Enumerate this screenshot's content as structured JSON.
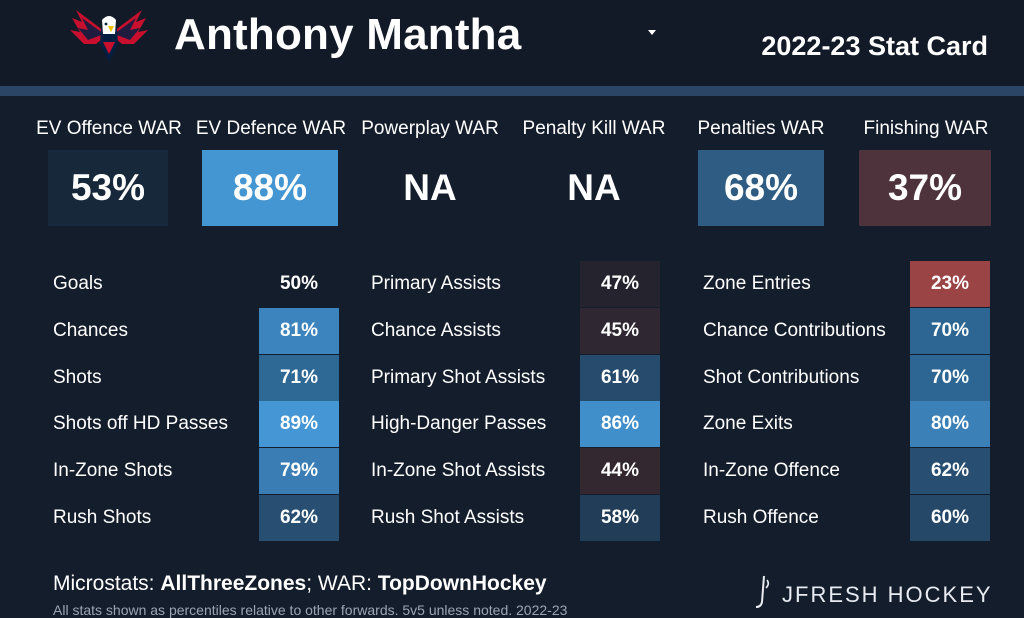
{
  "header": {
    "player_name": "Anthony Mantha",
    "card_title": "2022-23 Stat Card"
  },
  "war": [
    {
      "label": "EV Offence WAR",
      "value": "53%",
      "color": "#18283b"
    },
    {
      "label": "EV Defence WAR",
      "value": "88%",
      "color": "#4396d2"
    },
    {
      "label": "Powerplay WAR",
      "value": "NA",
      "color": "#141d2b"
    },
    {
      "label": "Penalty Kill WAR",
      "value": "NA",
      "color": "#141d2b"
    },
    {
      "label": "Penalties WAR",
      "value": "68%",
      "color": "#2e5c82"
    },
    {
      "label": "Finishing WAR",
      "value": "37%",
      "color": "#4e333c"
    }
  ],
  "stats": {
    "col1": [
      {
        "label": "Goals",
        "value": "50%",
        "color": "#141d2b"
      },
      {
        "label": "Chances",
        "value": "81%",
        "color": "#3b84bd"
      },
      {
        "label": "Shots",
        "value": "71%",
        "color": "#2e6895"
      },
      {
        "label": "Shots off HD Passes",
        "value": "89%",
        "color": "#4497d4"
      },
      {
        "label": "In-Zone Shots",
        "value": "79%",
        "color": "#3a7db4"
      },
      {
        "label": "Rush Shots",
        "value": "62%",
        "color": "#284f72"
      }
    ],
    "col2": [
      {
        "label": "Primary Assists",
        "value": "47%",
        "color": "#25232e"
      },
      {
        "label": "Chance Assists",
        "value": "45%",
        "color": "#2f2731"
      },
      {
        "label": "Primary Shot Assists",
        "value": "61%",
        "color": "#264b6c"
      },
      {
        "label": "High-Danger Passes",
        "value": "86%",
        "color": "#418fca"
      },
      {
        "label": "In-Zone Shot Assists",
        "value": "44%",
        "color": "#332830"
      },
      {
        "label": "Rush Shot Assists",
        "value": "58%",
        "color": "#213d58"
      }
    ],
    "col3": [
      {
        "label": "Zone Entries",
        "value": "23%",
        "color": "#9a4446"
      },
      {
        "label": "Chance Contributions",
        "value": "70%",
        "color": "#2d6692"
      },
      {
        "label": "Shot Contributions",
        "value": "70%",
        "color": "#2d6692"
      },
      {
        "label": "Zone Exits",
        "value": "80%",
        "color": "#3b80b7"
      },
      {
        "label": "In-Zone Offence",
        "value": "62%",
        "color": "#284f72"
      },
      {
        "label": "Rush Offence",
        "value": "60%",
        "color": "#254868"
      }
    ]
  },
  "footer": {
    "microstats_prefix": "Microstats: ",
    "microstats_source": "AllThreeZones",
    "war_prefix": "; WAR: ",
    "war_source": "TopDownHockey",
    "note": "All stats shown as percentiles relative to other forwards. 5v5 unless noted. 2022-23",
    "brand": "JFRESH HOCKEY"
  },
  "icons": {
    "logo": "capitals-eagle-logo",
    "dropdown": "caret-down-icon",
    "brand_mark": "hockey-stick-icon"
  }
}
